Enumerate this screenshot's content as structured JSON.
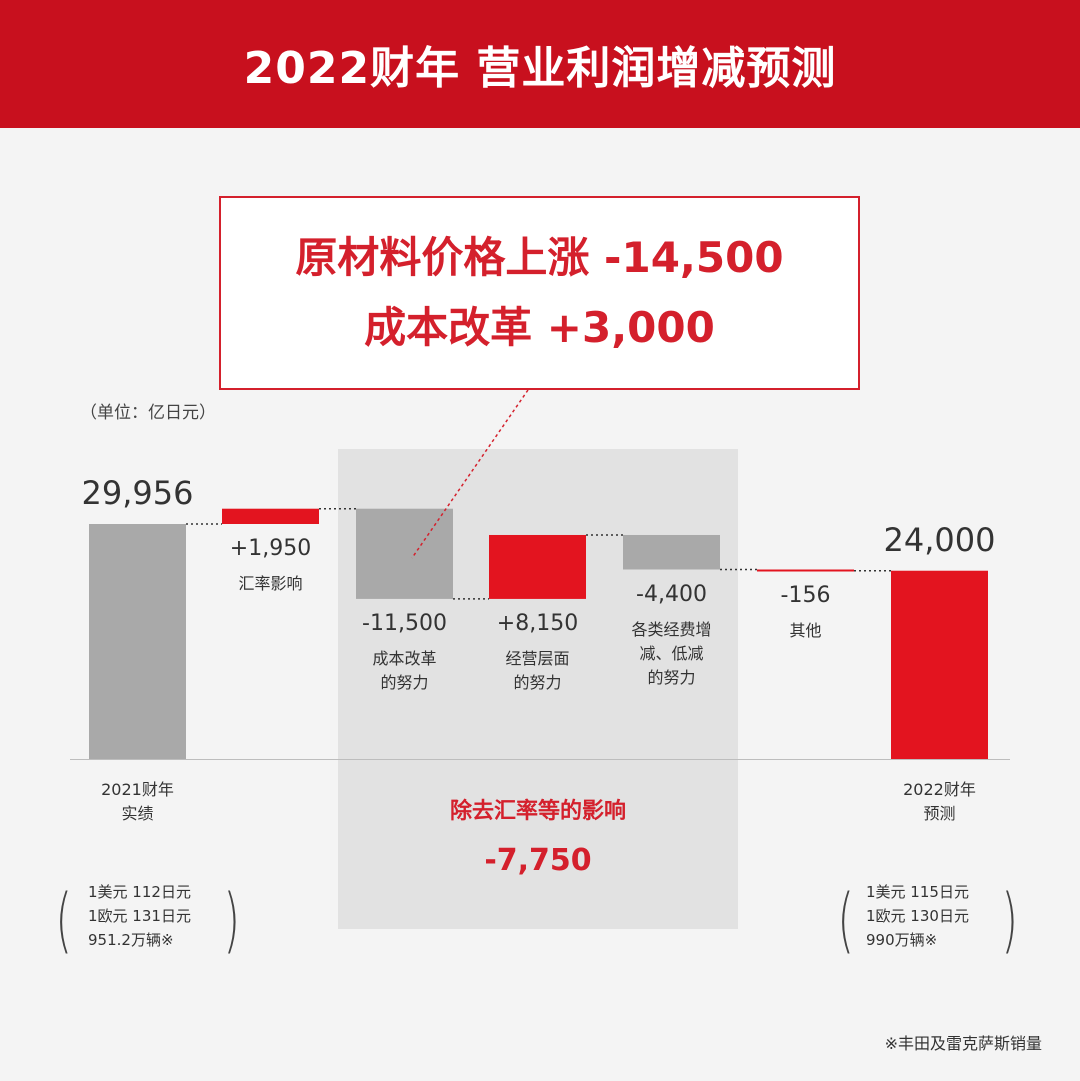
{
  "header": {
    "title": "2022财年 营业利润增减预测"
  },
  "callout": {
    "line1": "原材料价格上涨 -14,500",
    "line2": "成本改革 +3,000"
  },
  "unit_label": "（单位：亿日元）",
  "fx_panel": {
    "title": "除去汇率等的影响",
    "value": "-7,750"
  },
  "fx_assumptions": {
    "fy2021": "1美元 112日元\n1欧元 131日元\n951.2万辆※",
    "fy2022": "1美元 115日元\n1欧元 130日元\n990万辆※"
  },
  "footnote": "※丰田及雷克萨斯销量",
  "colors": {
    "red": "#e3141f",
    "gray": "#a9a9a9",
    "accent": "#d4202c"
  },
  "chart_data": {
    "type": "waterfall",
    "unit": "亿日元",
    "steps": [
      {
        "label": "2021财年\n实绩",
        "value": 29956,
        "display": "29,956",
        "kind": "total",
        "color": "gray"
      },
      {
        "label": "汇率影响",
        "value": 1950,
        "display": "+1,950",
        "kind": "delta",
        "color": "red"
      },
      {
        "label": "成本改革\n的努力",
        "value": -11500,
        "display": "-11,500",
        "kind": "delta",
        "color": "gray"
      },
      {
        "label": "经营层面\n的努力",
        "value": 8150,
        "display": "+8,150",
        "kind": "delta",
        "color": "red"
      },
      {
        "label": "各类经费增\n减、低减\n的努力",
        "value": -4400,
        "display": "-4,400",
        "kind": "delta",
        "color": "gray"
      },
      {
        "label": "其他",
        "value": -156,
        "display": "-156",
        "kind": "delta",
        "color": "red"
      },
      {
        "label": "2022财年\n预测",
        "value": 24000,
        "display": "24,000",
        "kind": "total",
        "color": "red"
      }
    ]
  }
}
